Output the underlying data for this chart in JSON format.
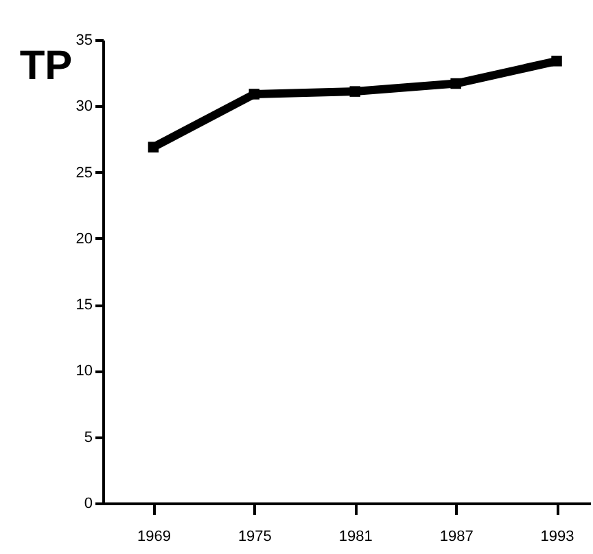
{
  "chart_data": {
    "type": "line",
    "ylabel": "TP",
    "x": [
      1969,
      1975,
      1981,
      1987,
      1993
    ],
    "series": [
      {
        "color": "#000000",
        "values": [
          26.9,
          30.9,
          31.1,
          31.7,
          33.4
        ]
      }
    ],
    "xlim": [
      1966,
      1995
    ],
    "xticks": [
      1969,
      1975,
      1981,
      1987,
      1993
    ],
    "ylim": [
      0,
      35
    ],
    "yticks": [
      0,
      5,
      10,
      15,
      20,
      25,
      30,
      35
    ],
    "marker": "square",
    "line_style": "solid",
    "grid": false,
    "legend": false
  }
}
